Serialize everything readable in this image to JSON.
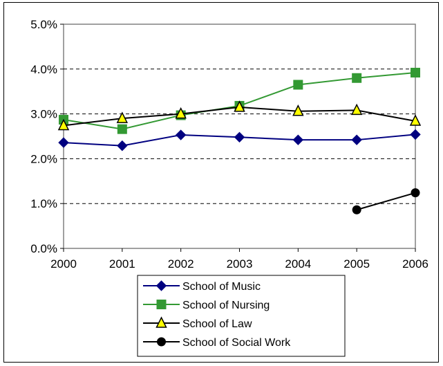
{
  "chart_data": {
    "type": "line",
    "title": "",
    "xlabel": "",
    "ylabel": "",
    "x": [
      "2000",
      "2001",
      "2002",
      "2003",
      "2004",
      "2005",
      "2006"
    ],
    "ylim": [
      0,
      5.0
    ],
    "y_ticks": [
      "0.0%",
      "1.0%",
      "2.0%",
      "3.0%",
      "4.0%",
      "5.0%"
    ],
    "grid": "horizontal dashed",
    "legend_position": "bottom",
    "series": [
      {
        "name": "School of Music",
        "color": "#000080",
        "marker": "diamond",
        "values": [
          2.36,
          2.29,
          2.53,
          2.48,
          2.42,
          2.42,
          2.54
        ]
      },
      {
        "name": "School of Nursing",
        "color": "#339933",
        "marker": "square",
        "values": [
          2.87,
          2.66,
          2.97,
          3.18,
          3.65,
          3.8,
          3.92
        ]
      },
      {
        "name": "School of Law",
        "color": "#000000",
        "marker": "triangle",
        "values": [
          2.74,
          2.9,
          3.0,
          3.15,
          3.06,
          3.08,
          2.84
        ]
      },
      {
        "name": "School of Social Work",
        "color": "#000000",
        "marker": "circle",
        "values": [
          null,
          null,
          null,
          null,
          null,
          0.86,
          1.24
        ]
      }
    ]
  }
}
